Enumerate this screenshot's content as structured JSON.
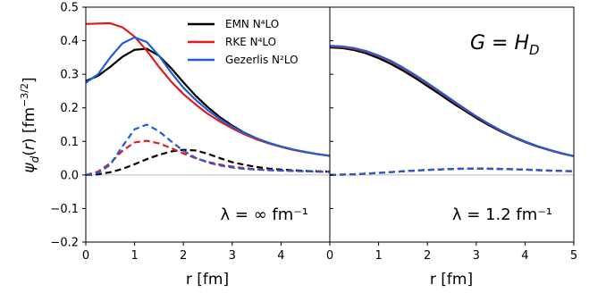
{
  "chart_data": [
    {
      "type": "line",
      "panel": "left",
      "annotation": "λ = ∞ fm⁻¹",
      "xlabel": "r [fm]",
      "ylabel": "ψ_d(r) [fm^-3/2]",
      "xlim": [
        0,
        5
      ],
      "ylim": [
        -0.2,
        0.5
      ],
      "x_ticks": [
        "0",
        "1",
        "2",
        "3",
        "4"
      ],
      "y_ticks": [
        "−0.2",
        "−0.1",
        "0.0",
        "0.1",
        "0.2",
        "0.3",
        "0.4",
        "0.5"
      ],
      "legend_position": "top-right",
      "series": [
        {
          "name": "EMN N⁴LO",
          "color": "#000000",
          "style": "solid",
          "x": [
            0,
            0.25,
            0.5,
            0.75,
            1,
            1.25,
            1.5,
            1.75,
            2,
            2.25,
            2.5,
            2.75,
            3,
            3.25,
            3.5,
            3.75,
            4,
            4.25,
            4.5,
            4.75,
            5
          ],
          "values": [
            0.28,
            0.295,
            0.322,
            0.352,
            0.373,
            0.376,
            0.355,
            0.318,
            0.276,
            0.236,
            0.202,
            0.172,
            0.147,
            0.126,
            0.109,
            0.095,
            0.084,
            0.075,
            0.068,
            0.062,
            0.057
          ]
        },
        {
          "name": "RKE N⁴LO",
          "color": "#e31a1c",
          "style": "solid",
          "x": [
            0,
            0.25,
            0.5,
            0.75,
            1,
            1.25,
            1.5,
            1.75,
            2,
            2.25,
            2.5,
            2.75,
            3,
            3.25,
            3.5,
            3.75,
            4,
            4.25,
            4.5,
            4.75,
            5
          ],
          "values": [
            0.45,
            0.451,
            0.452,
            0.44,
            0.412,
            0.37,
            0.322,
            0.278,
            0.241,
            0.21,
            0.182,
            0.159,
            0.139,
            0.121,
            0.106,
            0.094,
            0.084,
            0.075,
            0.068,
            0.062,
            0.057
          ]
        },
        {
          "name": "Gezerlis N²LO",
          "color": "#1f5fd6",
          "style": "solid",
          "x": [
            0,
            0.25,
            0.5,
            0.75,
            1,
            1.25,
            1.5,
            1.75,
            2,
            2.25,
            2.5,
            2.75,
            3,
            3.25,
            3.5,
            3.75,
            4,
            4.25,
            4.5,
            4.75,
            5
          ],
          "values": [
            0.275,
            0.3,
            0.35,
            0.392,
            0.41,
            0.396,
            0.355,
            0.305,
            0.26,
            0.224,
            0.193,
            0.166,
            0.144,
            0.125,
            0.109,
            0.096,
            0.085,
            0.076,
            0.069,
            0.062,
            0.057
          ]
        },
        {
          "name": "EMN N⁴LO",
          "color": "#000000",
          "style": "dashed",
          "x": [
            0,
            0.25,
            0.5,
            0.75,
            1,
            1.25,
            1.5,
            1.75,
            2,
            2.25,
            2.5,
            2.75,
            3,
            3.25,
            3.5,
            3.75,
            4,
            4.25,
            4.5,
            4.75,
            5
          ],
          "values": [
            0,
            0.002,
            0.008,
            0.018,
            0.032,
            0.047,
            0.06,
            0.07,
            0.075,
            0.073,
            0.063,
            0.05,
            0.038,
            0.03,
            0.024,
            0.019,
            0.016,
            0.014,
            0.012,
            0.011,
            0.01
          ]
        },
        {
          "name": "RKE N⁴LO",
          "color": "#e31a1c",
          "style": "dashed",
          "x": [
            0,
            0.25,
            0.5,
            0.75,
            1,
            1.25,
            1.5,
            1.75,
            2,
            2.25,
            2.5,
            2.75,
            3,
            3.25,
            3.5,
            3.75,
            4,
            4.25,
            4.5,
            4.75,
            5
          ],
          "values": [
            0,
            0.01,
            0.035,
            0.072,
            0.097,
            0.102,
            0.094,
            0.08,
            0.064,
            0.05,
            0.039,
            0.031,
            0.025,
            0.02,
            0.017,
            0.015,
            0.013,
            0.012,
            0.011,
            0.01,
            0.009
          ]
        },
        {
          "name": "Gezerlis N²LO",
          "color": "#1f5fd6",
          "style": "dashed",
          "x": [
            0,
            0.25,
            0.5,
            0.75,
            1,
            1.25,
            1.5,
            1.75,
            2,
            2.25,
            2.5,
            2.75,
            3,
            3.25,
            3.5,
            3.75,
            4,
            4.25,
            4.5,
            4.75,
            5
          ],
          "values": [
            0,
            0.006,
            0.03,
            0.085,
            0.136,
            0.15,
            0.13,
            0.1,
            0.072,
            0.051,
            0.037,
            0.028,
            0.022,
            0.018,
            0.016,
            0.014,
            0.013,
            0.012,
            0.011,
            0.01,
            0.009
          ]
        }
      ]
    },
    {
      "type": "line",
      "panel": "right",
      "annotation": "λ = 1.2 fm⁻¹",
      "title_annotation": "G = H_D",
      "xlabel": "r [fm]",
      "xlim": [
        0,
        5
      ],
      "ylim": [
        -0.2,
        0.5
      ],
      "x_ticks": [
        "0",
        "1",
        "2",
        "3",
        "4",
        "5"
      ],
      "series": [
        {
          "name": "EMN N⁴LO",
          "color": "#000000",
          "style": "solid",
          "x": [
            0,
            0.25,
            0.5,
            0.75,
            1,
            1.25,
            1.5,
            1.75,
            2,
            2.25,
            2.5,
            2.75,
            3,
            3.25,
            3.5,
            3.75,
            4,
            4.25,
            4.5,
            4.75,
            5
          ],
          "values": [
            0.38,
            0.378,
            0.372,
            0.362,
            0.348,
            0.331,
            0.311,
            0.289,
            0.265,
            0.241,
            0.216,
            0.193,
            0.17,
            0.149,
            0.13,
            0.113,
            0.098,
            0.085,
            0.074,
            0.064,
            0.056
          ]
        },
        {
          "name": "RKE N⁴LO",
          "color": "#e31a1c",
          "style": "solid",
          "x": [
            0,
            0.25,
            0.5,
            0.75,
            1,
            1.25,
            1.5,
            1.75,
            2,
            2.25,
            2.5,
            2.75,
            3,
            3.25,
            3.5,
            3.75,
            4,
            4.25,
            4.5,
            4.75,
            5
          ],
          "values": [
            0.383,
            0.381,
            0.376,
            0.367,
            0.354,
            0.338,
            0.318,
            0.296,
            0.272,
            0.247,
            0.222,
            0.197,
            0.174,
            0.152,
            0.132,
            0.114,
            0.099,
            0.086,
            0.074,
            0.064,
            0.056
          ]
        },
        {
          "name": "Gezerlis N²LO",
          "color": "#1f5fd6",
          "style": "solid",
          "x": [
            0,
            0.25,
            0.5,
            0.75,
            1,
            1.25,
            1.5,
            1.75,
            2,
            2.25,
            2.5,
            2.75,
            3,
            3.25,
            3.5,
            3.75,
            4,
            4.25,
            4.5,
            4.75,
            5
          ],
          "values": [
            0.385,
            0.383,
            0.378,
            0.369,
            0.356,
            0.34,
            0.32,
            0.298,
            0.274,
            0.249,
            0.224,
            0.199,
            0.175,
            0.153,
            0.133,
            0.115,
            0.1,
            0.086,
            0.075,
            0.065,
            0.056
          ]
        },
        {
          "name": "EMN N⁴LO",
          "color": "#000000",
          "style": "dashed",
          "x": [
            0,
            0.5,
            1,
            1.5,
            2,
            2.5,
            3,
            3.5,
            4,
            4.5,
            5
          ],
          "values": [
            0,
            0.002,
            0.006,
            0.011,
            0.015,
            0.018,
            0.019,
            0.018,
            0.016,
            0.013,
            0.011
          ]
        },
        {
          "name": "RKE N⁴LO",
          "color": "#e31a1c",
          "style": "dashed",
          "x": [
            0,
            0.5,
            1,
            1.5,
            2,
            2.5,
            3,
            3.5,
            4,
            4.5,
            5
          ],
          "values": [
            0,
            0.002,
            0.006,
            0.011,
            0.015,
            0.018,
            0.019,
            0.018,
            0.016,
            0.013,
            0.011
          ]
        },
        {
          "name": "Gezerlis N²LO",
          "color": "#1f5fd6",
          "style": "dashed",
          "x": [
            0,
            0.5,
            1,
            1.5,
            2,
            2.5,
            3,
            3.5,
            4,
            4.5,
            5
          ],
          "values": [
            0,
            0.002,
            0.006,
            0.011,
            0.015,
            0.018,
            0.019,
            0.018,
            0.016,
            0.013,
            0.011
          ]
        }
      ]
    }
  ],
  "legend": {
    "items": [
      {
        "label": "EMN N⁴LO",
        "color": "#000000"
      },
      {
        "label": "RKE N⁴LO",
        "color": "#e31a1c"
      },
      {
        "label": "Gezerlis N²LO",
        "color": "#1f5fd6"
      }
    ]
  },
  "colors": {
    "zero_line": "#bbbbbb",
    "axis": "#000000"
  }
}
